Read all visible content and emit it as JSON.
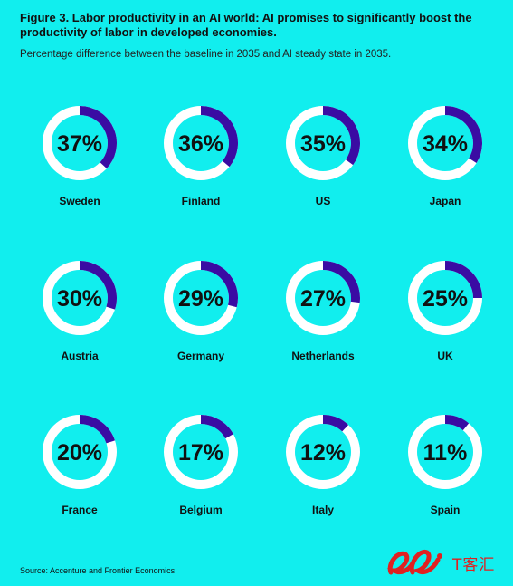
{
  "title": "Figure 3. Labor productivity in an AI world: AI promises to significantly boost the productivity of labor in developed economies.",
  "subtitle": "Percentage difference between the baseline in 2035 and AI steady state in 2035.",
  "source": "Source: Accenture and Frontier Economics",
  "watermark": "T客汇",
  "colors": {
    "background": "#11eeee",
    "ring_track": "#ffffff",
    "ring_fill": "#3a0ca3",
    "text": "#111111"
  },
  "chart_data": {
    "type": "donut-grid",
    "unit": "%",
    "items": [
      {
        "country": "Sweden",
        "value": 37,
        "label": "37%"
      },
      {
        "country": "Finland",
        "value": 36,
        "label": "36%"
      },
      {
        "country": "US",
        "value": 35,
        "label": "35%"
      },
      {
        "country": "Japan",
        "value": 34,
        "label": "34%"
      },
      {
        "country": "Austria",
        "value": 30,
        "label": "30%"
      },
      {
        "country": "Germany",
        "value": 29,
        "label": "29%"
      },
      {
        "country": "Netherlands",
        "value": 27,
        "label": "27%"
      },
      {
        "country": "UK",
        "value": 25,
        "label": "25%"
      },
      {
        "country": "France",
        "value": 20,
        "label": "20%"
      },
      {
        "country": "Belgium",
        "value": 17,
        "label": "17%"
      },
      {
        "country": "Italy",
        "value": 12,
        "label": "12%"
      },
      {
        "country": "Spain",
        "value": 11,
        "label": "11%"
      }
    ]
  }
}
